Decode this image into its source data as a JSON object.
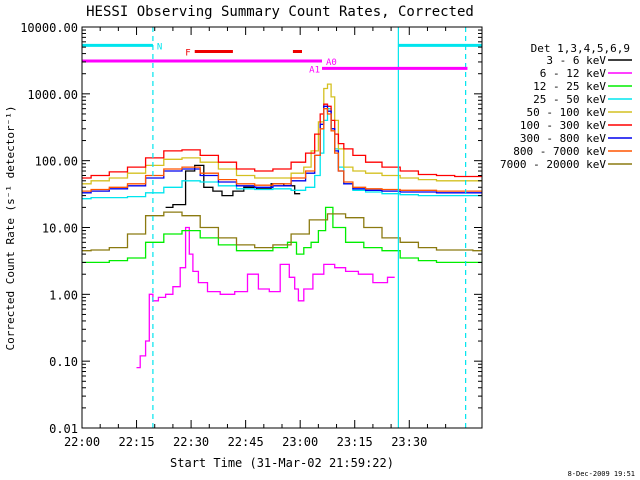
{
  "chart_data": {
    "type": "line",
    "title": "HESSI Observing Summary Count Rates, Corrected",
    "xlabel": "Start Time (31-Mar-02 21:59:22)",
    "ylabel": "Corrected Count Rate (s⁻¹ detector⁻¹)",
    "y_scale": "log",
    "ylim": [
      0.01,
      10000
    ],
    "xlim_minutes": [
      0,
      110
    ],
    "x_tick_labels": [
      "22:00",
      "22:15",
      "22:30",
      "22:45",
      "23:00",
      "23:15",
      "23:30"
    ],
    "x_tick_minutes": [
      0,
      15,
      30,
      45,
      60,
      75,
      90
    ],
    "y_tick_labels": [
      "0.01",
      "0.10",
      "1.00",
      "10.00",
      "100.00",
      "1000.00",
      "10000.00"
    ],
    "y_tick_values": [
      0.01,
      0.1,
      1,
      10,
      100,
      1000,
      10000
    ],
    "legend": {
      "header": "Det 1,3,4,5,6,9",
      "placement": "right"
    },
    "series": [
      {
        "name": "3 - 6 keV",
        "color": "#000000",
        "x": [
          23,
          27,
          30,
          32,
          35,
          37,
          40,
          43,
          46,
          50,
          54,
          57,
          60
        ],
        "y": [
          20,
          22,
          70,
          85,
          40,
          35,
          30,
          35,
          40,
          38,
          45,
          42,
          32
        ]
      },
      {
        "name": "6 - 12 keV",
        "color": "#ff00ff",
        "x": [
          15,
          17,
          18,
          19,
          20,
          22,
          24,
          26,
          28,
          29,
          30,
          31,
          33,
          36,
          40,
          44,
          47,
          50,
          53,
          56,
          58,
          59,
          60,
          62,
          65,
          68,
          71,
          74,
          78,
          82,
          86
        ],
        "y": [
          0.08,
          0.12,
          0.2,
          1.0,
          0.8,
          0.9,
          1.0,
          1.3,
          2.5,
          10,
          4.0,
          2.2,
          1.5,
          1.1,
          1.0,
          1.1,
          2.0,
          1.2,
          1.1,
          2.8,
          1.8,
          1.2,
          0.8,
          1.2,
          2.0,
          2.8,
          2.5,
          2.2,
          2.0,
          1.5,
          1.8
        ]
      },
      {
        "name": "12 - 25 keV",
        "color": "#00ee00",
        "x": [
          0,
          5,
          10,
          15,
          20,
          25,
          30,
          35,
          40,
          45,
          50,
          55,
          58,
          60,
          62,
          64,
          66,
          68,
          70,
          75,
          80,
          85,
          90,
          95,
          100,
          105,
          110
        ],
        "y": [
          3.0,
          3.0,
          3.2,
          3.5,
          6.0,
          8.0,
          9.0,
          7.0,
          5.5,
          4.5,
          4.5,
          5.0,
          6.0,
          4.0,
          5.0,
          6.0,
          9.0,
          20,
          10,
          6.0,
          5.0,
          4.5,
          3.5,
          3.2,
          3.0,
          3.0,
          3.0
        ]
      },
      {
        "name": "25 - 50 keV",
        "color": "#00e5ee",
        "x": [
          0,
          5,
          10,
          15,
          20,
          25,
          30,
          35,
          40,
          45,
          50,
          55,
          60,
          63,
          65,
          66,
          67,
          68,
          69,
          70,
          71,
          73,
          76,
          80,
          85,
          90,
          95,
          100,
          105,
          110
        ],
        "y": [
          27,
          28,
          28,
          29,
          33,
          40,
          50,
          48,
          42,
          38,
          37,
          38,
          36,
          40,
          60,
          130,
          400,
          600,
          300,
          150,
          80,
          45,
          36,
          34,
          32,
          31,
          30,
          30,
          30,
          30
        ]
      },
      {
        "name": "50 - 100 keV",
        "color": "#d4c020",
        "x": [
          0,
          5,
          10,
          15,
          20,
          25,
          30,
          35,
          40,
          45,
          50,
          55,
          60,
          62,
          64,
          66,
          67,
          68,
          69,
          70,
          71,
          73,
          76,
          80,
          85,
          90,
          95,
          100,
          105,
          110
        ],
        "y": [
          45,
          50,
          55,
          65,
          85,
          105,
          110,
          95,
          75,
          60,
          55,
          55,
          65,
          80,
          140,
          380,
          1200,
          1400,
          900,
          400,
          150,
          80,
          70,
          65,
          60,
          55,
          52,
          50,
          50,
          50
        ]
      },
      {
        "name": "100 - 300 keV",
        "color": "#ff0000",
        "x": [
          0,
          5,
          10,
          15,
          20,
          25,
          30,
          35,
          40,
          45,
          50,
          55,
          60,
          63,
          65,
          66,
          67,
          68,
          69,
          70,
          71,
          73,
          76,
          80,
          85,
          90,
          95,
          100,
          105,
          110
        ],
        "y": [
          55,
          60,
          68,
          80,
          110,
          140,
          145,
          120,
          95,
          75,
          70,
          75,
          95,
          130,
          250,
          500,
          700,
          650,
          400,
          250,
          180,
          150,
          120,
          95,
          80,
          70,
          62,
          60,
          58,
          58
        ]
      },
      {
        "name": "300 - 800 keV",
        "color": "#0000ee",
        "x": [
          0,
          5,
          10,
          15,
          20,
          25,
          30,
          35,
          40,
          45,
          50,
          55,
          60,
          63,
          65,
          66,
          67,
          68,
          69,
          70,
          71,
          73,
          76,
          80,
          85,
          90,
          95,
          100,
          105,
          110
        ],
        "y": [
          33,
          35,
          38,
          42,
          55,
          70,
          75,
          60,
          48,
          42,
          40,
          42,
          50,
          65,
          120,
          350,
          650,
          550,
          300,
          140,
          70,
          45,
          38,
          36,
          35,
          34,
          34,
          33,
          33,
          33
        ]
      },
      {
        "name": "800 - 7000 keV",
        "color": "#ff5500",
        "x": [
          0,
          5,
          10,
          15,
          20,
          25,
          30,
          35,
          40,
          45,
          50,
          55,
          60,
          63,
          65,
          66,
          67,
          68,
          69,
          70,
          71,
          73,
          76,
          80,
          85,
          90,
          95,
          100,
          105,
          110
        ],
        "y": [
          35,
          37,
          40,
          45,
          60,
          75,
          80,
          65,
          52,
          45,
          43,
          45,
          55,
          70,
          120,
          300,
          600,
          500,
          280,
          130,
          70,
          48,
          40,
          38,
          37,
          36,
          36,
          35,
          35,
          35
        ]
      },
      {
        "name": "7000 - 20000 keV",
        "color": "#8b7a10",
        "x": [
          0,
          5,
          10,
          15,
          20,
          25,
          30,
          35,
          40,
          45,
          50,
          55,
          60,
          65,
          70,
          75,
          80,
          85,
          90,
          95,
          100,
          105,
          110
        ],
        "y": [
          4.5,
          4.6,
          5.0,
          8.0,
          15,
          17,
          15,
          10,
          7.0,
          5.5,
          5.0,
          5.5,
          8.0,
          13,
          16,
          14,
          10,
          7.0,
          6.0,
          5.0,
          4.6,
          4.6,
          4.5
        ]
      }
    ],
    "annotations": {
      "vertical_lines_minutes": [
        {
          "x": 19.5,
          "style": "dashed",
          "color": "#00e5ee"
        },
        {
          "x": 87,
          "style": "solid",
          "color": "#00e5ee"
        },
        {
          "x": 105.5,
          "style": "dashed",
          "color": "#00e5ee"
        }
      ],
      "flags": [
        {
          "label": "N",
          "color": "#00e5ee",
          "segments": [
            [
              0,
              19.5
            ],
            [
              87,
              110
            ]
          ],
          "level": 5300
        },
        {
          "label": "F",
          "color": "#ee0000",
          "segments": [
            [
              31,
              41.5
            ],
            [
              58,
              60.5
            ]
          ],
          "level": 4300
        },
        {
          "label": "A0",
          "color": "#ff00ff",
          "segments": [
            [
              0,
              66
            ]
          ],
          "level": 3100
        },
        {
          "label": "A1",
          "color": "#ff00ff",
          "segments": [
            [
              66,
              106
            ]
          ],
          "level": 2400
        }
      ]
    },
    "footer_date": "8-Dec-2009 19:51"
  }
}
